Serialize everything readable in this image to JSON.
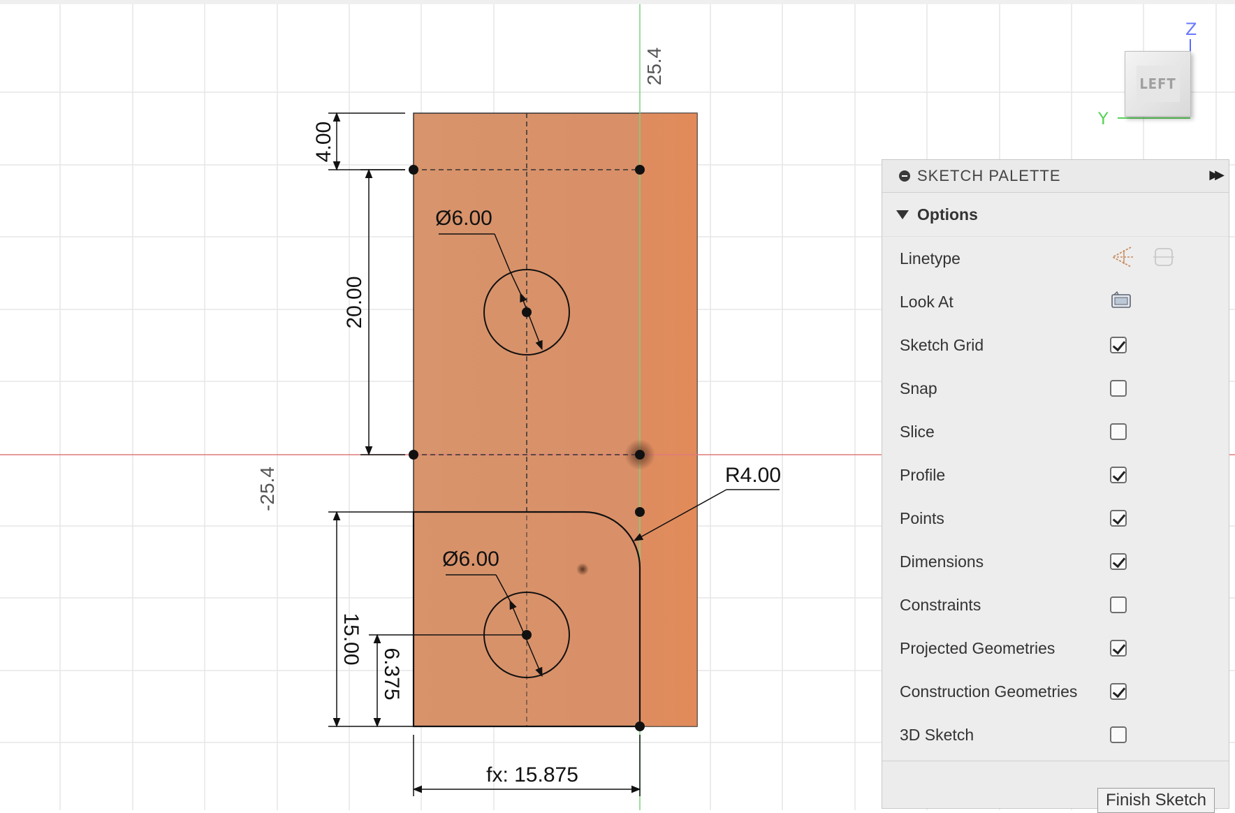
{
  "axis_labels": {
    "top": "25.4",
    "left": "-25.4"
  },
  "dimensions": {
    "top_offset": "4.00",
    "vertical_span": "20.00",
    "hole_top_diameter": "Ø6.00",
    "hole_bottom_diameter": "Ø6.00",
    "fillet_radius": "R4.00",
    "lower_height": "15.00",
    "hole_height": "6.375",
    "width": "fx: 15.875"
  },
  "viewcube": {
    "face_label": "LEFT",
    "z_label": "Z",
    "y_label": "Y"
  },
  "palette": {
    "title": "SKETCH PALETTE",
    "section_title": "Options",
    "rows": [
      {
        "label": "Linetype",
        "control": "linetype"
      },
      {
        "label": "Look At",
        "control": "lookat"
      },
      {
        "label": "Sketch Grid",
        "control": "checkbox",
        "checked": true
      },
      {
        "label": "Snap",
        "control": "checkbox",
        "checked": false
      },
      {
        "label": "Slice",
        "control": "checkbox",
        "checked": false
      },
      {
        "label": "Profile",
        "control": "checkbox",
        "checked": true
      },
      {
        "label": "Points",
        "control": "checkbox",
        "checked": true
      },
      {
        "label": "Dimensions",
        "control": "checkbox",
        "checked": true
      },
      {
        "label": "Constraints",
        "control": "checkbox",
        "checked": false
      },
      {
        "label": "Projected Geometries",
        "control": "checkbox",
        "checked": true
      },
      {
        "label": "Construction Geometries",
        "control": "checkbox",
        "checked": true
      },
      {
        "label": "3D Sketch",
        "control": "checkbox",
        "checked": false
      }
    ],
    "finish_button": "Finish Sketch"
  },
  "colors": {
    "body_fill": "#d99068",
    "body_fill_right": "#e48a58",
    "x_axis": "#e05050",
    "y_axis": "#6cc46c",
    "grid": "#e4e4e4"
  }
}
